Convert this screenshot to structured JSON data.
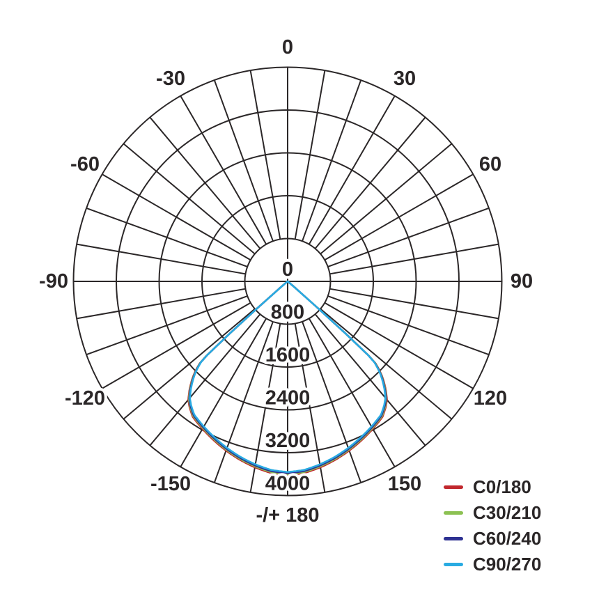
{
  "chart_data": {
    "type": "line",
    "subtype": "polar-photometric-diagram",
    "title": "",
    "orientation": "0 degrees at bottom, -/+180 at top, positive angles to the right",
    "angle_unit": "degrees",
    "angle_grid_step_deg": 10,
    "angle_label_step_deg": 30,
    "angle_labels": [
      {
        "angle": 180,
        "text": "-/+ 180"
      },
      {
        "angle": 150,
        "text": "150"
      },
      {
        "angle": 120,
        "text": "120"
      },
      {
        "angle": 90,
        "text": "90"
      },
      {
        "angle": 60,
        "text": "60"
      },
      {
        "angle": 30,
        "text": "30"
      },
      {
        "angle": 0,
        "text": "0"
      },
      {
        "angle": -30,
        "text": "-30"
      },
      {
        "angle": -60,
        "text": "-60"
      },
      {
        "angle": -90,
        "text": "-90"
      },
      {
        "angle": -120,
        "text": "-120"
      },
      {
        "angle": -150,
        "text": "-150"
      }
    ],
    "radial_axis": {
      "ticks": [
        0,
        800,
        1600,
        2400,
        3200,
        4000
      ],
      "min": 0,
      "max": 4000,
      "grid": true
    },
    "beam": {
      "comment": "luminous intensity samples, symmetric about 0 deg; all four C-planes nearly identical",
      "angles_deg": [
        0,
        5,
        10,
        15,
        20,
        25,
        30,
        35,
        38,
        40,
        42,
        44,
        45,
        46,
        47,
        47.5,
        48,
        48.5,
        49,
        50,
        52,
        55,
        60,
        70,
        80,
        90
      ],
      "intensity": [
        3560,
        3535,
        3470,
        3395,
        3310,
        3220,
        3130,
        3040,
        2930,
        2840,
        2700,
        2540,
        2450,
        2340,
        2210,
        2030,
        1450,
        750,
        280,
        80,
        25,
        12,
        8,
        5,
        3,
        0
      ]
    },
    "series": [
      {
        "name": "C0/180",
        "color": "#c1272d",
        "scale": 1.016
      },
      {
        "name": "C30/210",
        "color": "#8cc152",
        "scale": 1.011
      },
      {
        "name": "C60/240",
        "color": "#2e3192",
        "scale": 1.006
      },
      {
        "name": "C90/270",
        "color": "#29abe2",
        "scale": 1.0
      }
    ],
    "legend_position": "bottom-right",
    "grid_color": "#2b2728",
    "text_color": "#2a2627",
    "background_color": "#ffffff"
  }
}
